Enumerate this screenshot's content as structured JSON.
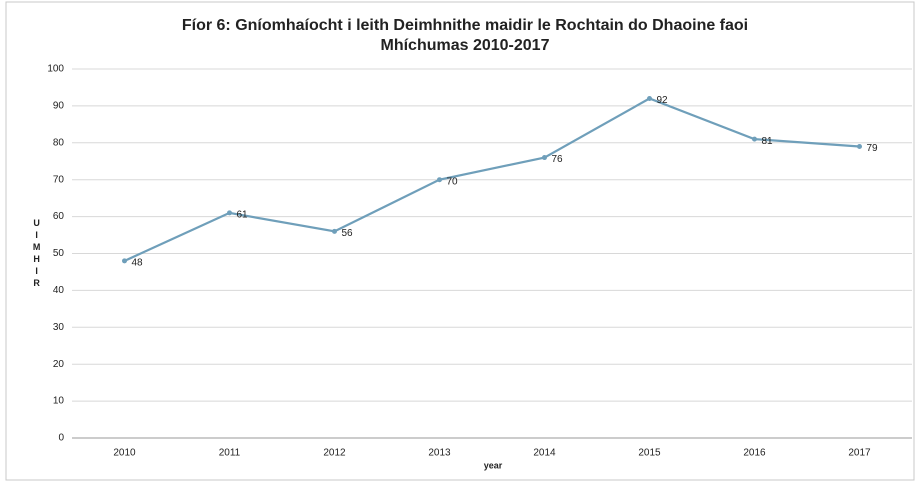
{
  "chart_data": {
    "type": "line",
    "title": [
      "Fíor 6: Gníomhaíocht i leith Deimhnithe maidir le Rochtain do Dhaoine faoi",
      "Mhíchumas 2010-2017"
    ],
    "x_label": "year",
    "y_label": "UIMHIR",
    "categories": [
      "2010",
      "2011",
      "2012",
      "2013",
      "2014",
      "2015",
      "2016",
      "2017"
    ],
    "series": [
      {
        "name": "UIMHIR",
        "color": "#6f9fba",
        "values": [
          48,
          61,
          56,
          70,
          76,
          92,
          81,
          79
        ]
      }
    ],
    "ylim": [
      0,
      100
    ],
    "yticks": [
      0,
      10,
      20,
      30,
      40,
      50,
      60,
      70,
      80,
      90,
      100
    ],
    "grid": true
  }
}
